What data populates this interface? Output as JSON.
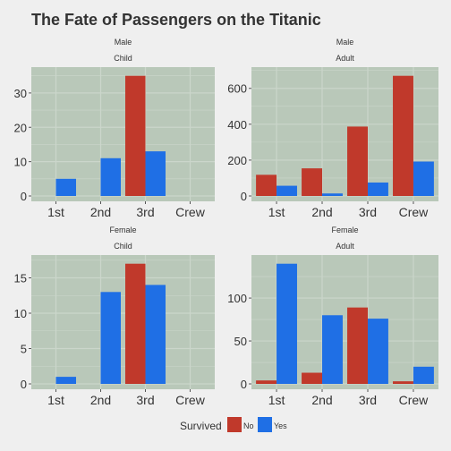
{
  "chart_data": {
    "type": "bar",
    "title": "The Fate of Passengers on the Titanic",
    "categories": [
      "1st",
      "2nd",
      "3rd",
      "Crew"
    ],
    "legend": {
      "title": "Survived",
      "position": "bottom",
      "entries": [
        {
          "label": "No",
          "color": "#c0392b"
        },
        {
          "label": "Yes",
          "color": "#1f6fe5"
        }
      ]
    },
    "colors": {
      "background": "#efefef",
      "panel": "#b9c8b9",
      "grid": "#cbd6cb",
      "No": "#c0392b",
      "Yes": "#1f6fe5"
    },
    "grid": true,
    "panels": [
      {
        "strip_top": "Male",
        "strip_bottom": "Child",
        "ylim": [
          0,
          36.75
        ],
        "yticks": [
          0,
          10,
          20,
          30
        ],
        "series": [
          {
            "name": "No",
            "values": [
              0,
              0,
              35,
              0
            ]
          },
          {
            "name": "Yes",
            "values": [
              5,
              11,
              13,
              0
            ]
          }
        ]
      },
      {
        "strip_top": "Male",
        "strip_bottom": "Adult",
        "ylim": [
          0,
          703.5
        ],
        "yticks": [
          0,
          200,
          400,
          600
        ],
        "series": [
          {
            "name": "No",
            "values": [
              118,
              154,
              387,
              670
            ]
          },
          {
            "name": "Yes",
            "values": [
              57,
              14,
              75,
              192
            ]
          }
        ]
      },
      {
        "strip_top": "Female",
        "strip_bottom": "Child",
        "ylim": [
          0,
          17.85
        ],
        "yticks": [
          0,
          5,
          10,
          15
        ],
        "series": [
          {
            "name": "No",
            "values": [
              0,
              0,
              17,
              0
            ]
          },
          {
            "name": "Yes",
            "values": [
              1,
              13,
              14,
              0
            ]
          }
        ]
      },
      {
        "strip_top": "Female",
        "strip_bottom": "Adult",
        "ylim": [
          0,
          147
        ],
        "yticks": [
          0,
          50,
          100
        ],
        "series": [
          {
            "name": "No",
            "values": [
              4,
              13,
              89,
              3
            ]
          },
          {
            "name": "Yes",
            "values": [
              140,
              80,
              76,
              20
            ]
          }
        ]
      }
    ]
  }
}
